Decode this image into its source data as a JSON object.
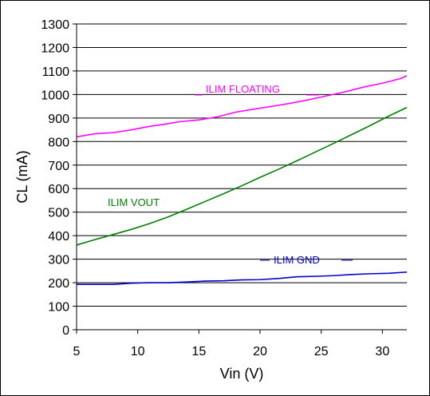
{
  "chart_data": {
    "type": "line",
    "xlabel": "Vin (V)",
    "ylabel": "CL (mA)",
    "xlim": [
      5,
      32
    ],
    "ylim": [
      0,
      1300
    ],
    "x_ticks": [
      5,
      10,
      15,
      20,
      25,
      30
    ],
    "y_ticks": [
      0,
      100,
      200,
      300,
      400,
      500,
      600,
      700,
      800,
      900,
      1000,
      1100,
      1200,
      1300
    ],
    "grid": "horizontal",
    "legend": "inline labels",
    "series": [
      {
        "name": "ILIM FLOATING",
        "color": "#ff00ff",
        "x": [
          5,
          6.5,
          8,
          9.5,
          11,
          12,
          13.5,
          15,
          16.5,
          18,
          19.5,
          21,
          22.5,
          24,
          25.5,
          27,
          28.5,
          30,
          31.5,
          32
        ],
        "y": [
          820,
          833,
          838,
          850,
          865,
          872,
          885,
          892,
          905,
          925,
          938,
          950,
          963,
          978,
          995,
          1012,
          1032,
          1048,
          1068,
          1080
        ]
      },
      {
        "name": "ILIM VOUT",
        "color": "#008000",
        "x": [
          5,
          6.5,
          8,
          9.5,
          11,
          12.5,
          14,
          15.5,
          17,
          18.5,
          20,
          21.5,
          23,
          24.5,
          26,
          27.5,
          29,
          30.5,
          32
        ],
        "y": [
          360,
          383,
          405,
          427,
          452,
          480,
          512,
          545,
          578,
          612,
          648,
          682,
          718,
          755,
          792,
          830,
          868,
          908,
          945
        ]
      },
      {
        "name": "ILIM GND",
        "color": "#0000cc",
        "x": [
          5,
          6.5,
          8,
          9.5,
          11,
          12.5,
          14,
          15.5,
          17,
          18.5,
          20,
          21.5,
          23,
          24.5,
          26,
          27.5,
          29,
          30.5,
          32
        ],
        "y": [
          193,
          193,
          193,
          198,
          200,
          200,
          203,
          207,
          208,
          212,
          213,
          218,
          225,
          227,
          230,
          235,
          238,
          240,
          245
        ]
      }
    ],
    "series_labels": [
      {
        "text": "ILIM FLOATING",
        "color": "#ff00ff"
      },
      {
        "text": "ILIM VOUT",
        "color": "#008000"
      },
      {
        "text": "ILIM GND",
        "color": "#0000cc"
      }
    ]
  }
}
